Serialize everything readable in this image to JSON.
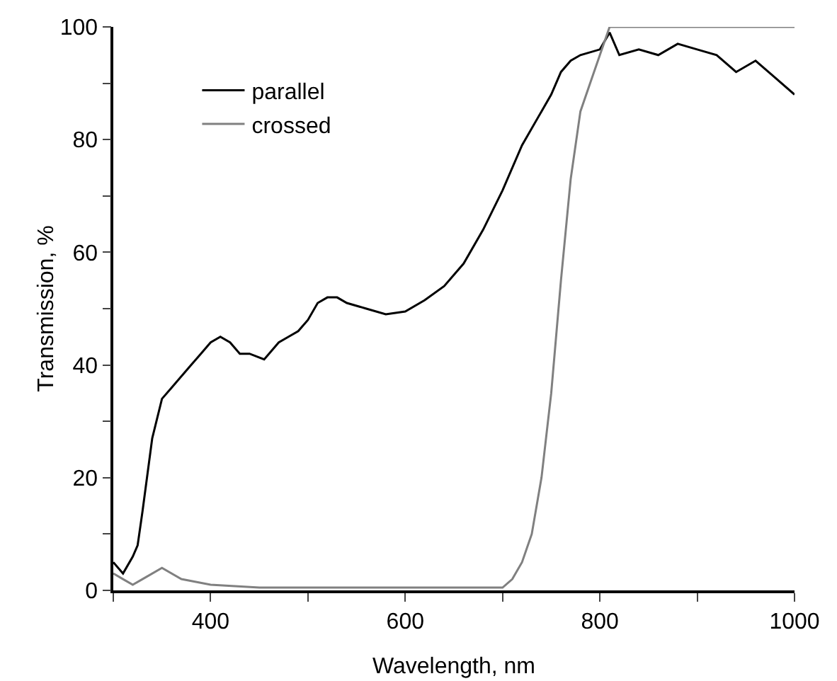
{
  "chart_data": {
    "type": "line",
    "xlabel": "Wavelength, nm",
    "ylabel": "Transmission, %",
    "xlim": [
      300,
      1000
    ],
    "ylim": [
      0,
      100
    ],
    "xticks": [
      {
        "value": 300,
        "label": null
      },
      400,
      {
        "value": 500,
        "label": null
      },
      600,
      {
        "value": 700,
        "label": null
      },
      800,
      {
        "value": 900,
        "label": null
      },
      1000
    ],
    "yticks": [
      0,
      {
        "value": 10,
        "label": null
      },
      20,
      {
        "value": 30,
        "label": null
      },
      40,
      {
        "value": 50,
        "label": null
      },
      60,
      {
        "value": 70,
        "label": null
      },
      80,
      {
        "value": 90,
        "label": null
      },
      100
    ],
    "grid": false,
    "legend": "top left",
    "marker": "none",
    "line_style": "solid",
    "series": [
      {
        "name": "parallel",
        "color": "#000000",
        "x": [
          300,
          310,
          320,
          325,
          330,
          340,
          350,
          360,
          370,
          380,
          390,
          400,
          410,
          420,
          430,
          440,
          455,
          460,
          470,
          480,
          490,
          500,
          510,
          520,
          530,
          540,
          560,
          580,
          600,
          620,
          640,
          660,
          680,
          700,
          720,
          740,
          750,
          760,
          770,
          780,
          800,
          810,
          820,
          840,
          860,
          880,
          900,
          920,
          940,
          960,
          980,
          1000
        ],
        "values": [
          5,
          3,
          6,
          8,
          14,
          27,
          34,
          36,
          38,
          40,
          42,
          44,
          45,
          44,
          42,
          42,
          41,
          42,
          44,
          45,
          46,
          48,
          51,
          52,
          52,
          51,
          50,
          49,
          49.5,
          51.5,
          54,
          58,
          64,
          71,
          79,
          85,
          88,
          92,
          94,
          95,
          96,
          99,
          95,
          96,
          95,
          97,
          96,
          95,
          92,
          94,
          91,
          88
        ]
      },
      {
        "name": "crossed",
        "color": "#808080",
        "x": [
          300,
          310,
          320,
          330,
          350,
          370,
          400,
          450,
          500,
          600,
          700,
          710,
          720,
          730,
          740,
          750,
          760,
          770,
          780,
          790,
          800,
          810,
          850,
          900,
          950,
          1000
        ],
        "values": [
          3,
          2,
          1,
          2,
          4,
          2,
          1,
          0.5,
          0.5,
          0.5,
          0.5,
          2,
          5,
          10,
          20,
          35,
          55,
          73,
          85,
          90,
          95,
          100,
          100,
          100,
          100,
          100
        ]
      }
    ]
  }
}
